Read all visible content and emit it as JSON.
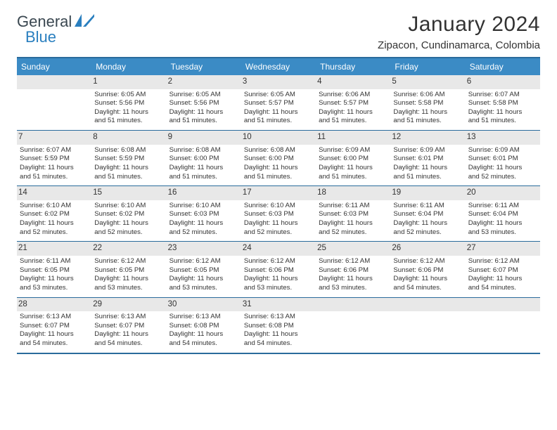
{
  "logo": {
    "text_dark": "General",
    "text_blue": "Blue"
  },
  "title": "January 2024",
  "location": "Zipacon, Cundinamarca, Colombia",
  "colors": {
    "header_bar": "#3b8bc5",
    "daynum_bg": "#e8e8e8",
    "week_border": "#2a6b9c",
    "calendar_border": "#2a6b9c",
    "title_color": "#333333",
    "text_color": "#333333"
  },
  "day_headers": [
    "Sunday",
    "Monday",
    "Tuesday",
    "Wednesday",
    "Thursday",
    "Friday",
    "Saturday"
  ],
  "weeks": [
    [
      {
        "n": "",
        "sr": "",
        "ss": "",
        "dl1": "",
        "dl2": ""
      },
      {
        "n": "1",
        "sr": "Sunrise: 6:05 AM",
        "ss": "Sunset: 5:56 PM",
        "dl1": "Daylight: 11 hours",
        "dl2": "and 51 minutes."
      },
      {
        "n": "2",
        "sr": "Sunrise: 6:05 AM",
        "ss": "Sunset: 5:56 PM",
        "dl1": "Daylight: 11 hours",
        "dl2": "and 51 minutes."
      },
      {
        "n": "3",
        "sr": "Sunrise: 6:05 AM",
        "ss": "Sunset: 5:57 PM",
        "dl1": "Daylight: 11 hours",
        "dl2": "and 51 minutes."
      },
      {
        "n": "4",
        "sr": "Sunrise: 6:06 AM",
        "ss": "Sunset: 5:57 PM",
        "dl1": "Daylight: 11 hours",
        "dl2": "and 51 minutes."
      },
      {
        "n": "5",
        "sr": "Sunrise: 6:06 AM",
        "ss": "Sunset: 5:58 PM",
        "dl1": "Daylight: 11 hours",
        "dl2": "and 51 minutes."
      },
      {
        "n": "6",
        "sr": "Sunrise: 6:07 AM",
        "ss": "Sunset: 5:58 PM",
        "dl1": "Daylight: 11 hours",
        "dl2": "and 51 minutes."
      }
    ],
    [
      {
        "n": "7",
        "sr": "Sunrise: 6:07 AM",
        "ss": "Sunset: 5:59 PM",
        "dl1": "Daylight: 11 hours",
        "dl2": "and 51 minutes."
      },
      {
        "n": "8",
        "sr": "Sunrise: 6:08 AM",
        "ss": "Sunset: 5:59 PM",
        "dl1": "Daylight: 11 hours",
        "dl2": "and 51 minutes."
      },
      {
        "n": "9",
        "sr": "Sunrise: 6:08 AM",
        "ss": "Sunset: 6:00 PM",
        "dl1": "Daylight: 11 hours",
        "dl2": "and 51 minutes."
      },
      {
        "n": "10",
        "sr": "Sunrise: 6:08 AM",
        "ss": "Sunset: 6:00 PM",
        "dl1": "Daylight: 11 hours",
        "dl2": "and 51 minutes."
      },
      {
        "n": "11",
        "sr": "Sunrise: 6:09 AM",
        "ss": "Sunset: 6:00 PM",
        "dl1": "Daylight: 11 hours",
        "dl2": "and 51 minutes."
      },
      {
        "n": "12",
        "sr": "Sunrise: 6:09 AM",
        "ss": "Sunset: 6:01 PM",
        "dl1": "Daylight: 11 hours",
        "dl2": "and 51 minutes."
      },
      {
        "n": "13",
        "sr": "Sunrise: 6:09 AM",
        "ss": "Sunset: 6:01 PM",
        "dl1": "Daylight: 11 hours",
        "dl2": "and 52 minutes."
      }
    ],
    [
      {
        "n": "14",
        "sr": "Sunrise: 6:10 AM",
        "ss": "Sunset: 6:02 PM",
        "dl1": "Daylight: 11 hours",
        "dl2": "and 52 minutes."
      },
      {
        "n": "15",
        "sr": "Sunrise: 6:10 AM",
        "ss": "Sunset: 6:02 PM",
        "dl1": "Daylight: 11 hours",
        "dl2": "and 52 minutes."
      },
      {
        "n": "16",
        "sr": "Sunrise: 6:10 AM",
        "ss": "Sunset: 6:03 PM",
        "dl1": "Daylight: 11 hours",
        "dl2": "and 52 minutes."
      },
      {
        "n": "17",
        "sr": "Sunrise: 6:10 AM",
        "ss": "Sunset: 6:03 PM",
        "dl1": "Daylight: 11 hours",
        "dl2": "and 52 minutes."
      },
      {
        "n": "18",
        "sr": "Sunrise: 6:11 AM",
        "ss": "Sunset: 6:03 PM",
        "dl1": "Daylight: 11 hours",
        "dl2": "and 52 minutes."
      },
      {
        "n": "19",
        "sr": "Sunrise: 6:11 AM",
        "ss": "Sunset: 6:04 PM",
        "dl1": "Daylight: 11 hours",
        "dl2": "and 52 minutes."
      },
      {
        "n": "20",
        "sr": "Sunrise: 6:11 AM",
        "ss": "Sunset: 6:04 PM",
        "dl1": "Daylight: 11 hours",
        "dl2": "and 53 minutes."
      }
    ],
    [
      {
        "n": "21",
        "sr": "Sunrise: 6:11 AM",
        "ss": "Sunset: 6:05 PM",
        "dl1": "Daylight: 11 hours",
        "dl2": "and 53 minutes."
      },
      {
        "n": "22",
        "sr": "Sunrise: 6:12 AM",
        "ss": "Sunset: 6:05 PM",
        "dl1": "Daylight: 11 hours",
        "dl2": "and 53 minutes."
      },
      {
        "n": "23",
        "sr": "Sunrise: 6:12 AM",
        "ss": "Sunset: 6:05 PM",
        "dl1": "Daylight: 11 hours",
        "dl2": "and 53 minutes."
      },
      {
        "n": "24",
        "sr": "Sunrise: 6:12 AM",
        "ss": "Sunset: 6:06 PM",
        "dl1": "Daylight: 11 hours",
        "dl2": "and 53 minutes."
      },
      {
        "n": "25",
        "sr": "Sunrise: 6:12 AM",
        "ss": "Sunset: 6:06 PM",
        "dl1": "Daylight: 11 hours",
        "dl2": "and 53 minutes."
      },
      {
        "n": "26",
        "sr": "Sunrise: 6:12 AM",
        "ss": "Sunset: 6:06 PM",
        "dl1": "Daylight: 11 hours",
        "dl2": "and 54 minutes."
      },
      {
        "n": "27",
        "sr": "Sunrise: 6:12 AM",
        "ss": "Sunset: 6:07 PM",
        "dl1": "Daylight: 11 hours",
        "dl2": "and 54 minutes."
      }
    ],
    [
      {
        "n": "28",
        "sr": "Sunrise: 6:13 AM",
        "ss": "Sunset: 6:07 PM",
        "dl1": "Daylight: 11 hours",
        "dl2": "and 54 minutes."
      },
      {
        "n": "29",
        "sr": "Sunrise: 6:13 AM",
        "ss": "Sunset: 6:07 PM",
        "dl1": "Daylight: 11 hours",
        "dl2": "and 54 minutes."
      },
      {
        "n": "30",
        "sr": "Sunrise: 6:13 AM",
        "ss": "Sunset: 6:08 PM",
        "dl1": "Daylight: 11 hours",
        "dl2": "and 54 minutes."
      },
      {
        "n": "31",
        "sr": "Sunrise: 6:13 AM",
        "ss": "Sunset: 6:08 PM",
        "dl1": "Daylight: 11 hours",
        "dl2": "and 54 minutes."
      },
      {
        "n": "",
        "sr": "",
        "ss": "",
        "dl1": "",
        "dl2": ""
      },
      {
        "n": "",
        "sr": "",
        "ss": "",
        "dl1": "",
        "dl2": ""
      },
      {
        "n": "",
        "sr": "",
        "ss": "",
        "dl1": "",
        "dl2": ""
      }
    ],
    [
      {
        "n": "",
        "sr": "",
        "ss": "",
        "dl1": "",
        "dl2": ""
      },
      {
        "n": "",
        "sr": "",
        "ss": "",
        "dl1": "",
        "dl2": ""
      },
      {
        "n": "",
        "sr": "",
        "ss": "",
        "dl1": "",
        "dl2": ""
      },
      {
        "n": "",
        "sr": "",
        "ss": "",
        "dl1": "",
        "dl2": ""
      },
      {
        "n": "",
        "sr": "",
        "ss": "",
        "dl1": "",
        "dl2": ""
      },
      {
        "n": "",
        "sr": "",
        "ss": "",
        "dl1": "",
        "dl2": ""
      },
      {
        "n": "",
        "sr": "",
        "ss": "",
        "dl1": "",
        "dl2": ""
      }
    ]
  ]
}
